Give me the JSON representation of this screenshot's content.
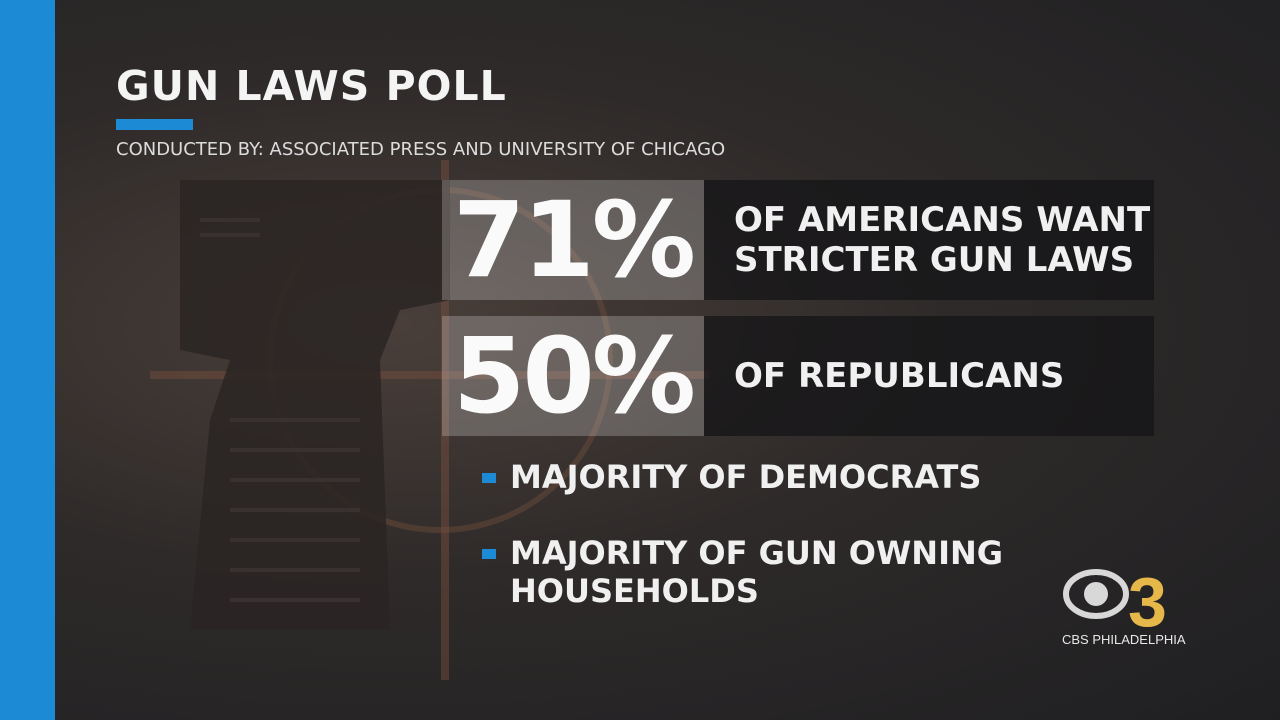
{
  "graphic": {
    "title": "GUN LAWS POLL",
    "subtitle": "CONDUCTED BY: ASSOCIATED PRESS AND UNIVERSITY OF CHICAGO",
    "accent_color": "#1d8ad6"
  },
  "stats": [
    {
      "value": "71%",
      "description": "OF AMERICANS WANT\nSTRICTER GUN LAWS"
    },
    {
      "value": "50%",
      "description": "OF REPUBLICANS"
    }
  ],
  "bullets": [
    {
      "text": "MAJORITY OF DEMOCRATS"
    },
    {
      "text": "MAJORITY OF GUN OWNING\nHOUSEHOLDS"
    }
  ],
  "logo": {
    "numeral": "3",
    "station": "CBS PHILADELPHIA",
    "numeral_color": "#e6b84a"
  }
}
